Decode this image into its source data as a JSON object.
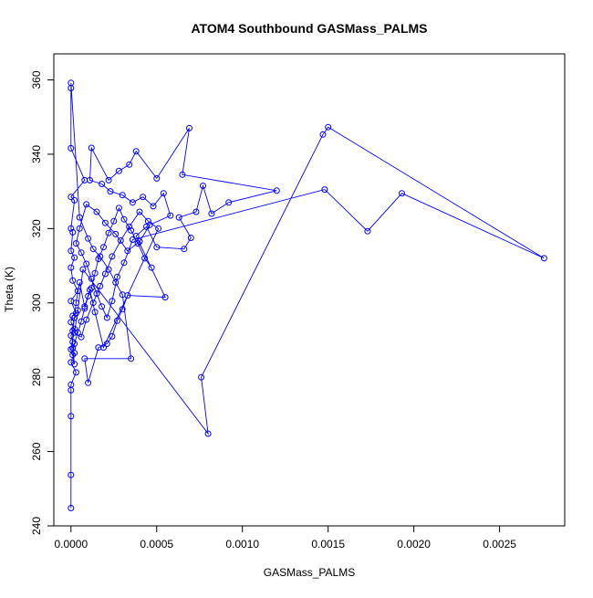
{
  "chart_data": {
    "type": "line",
    "title": "ATOM4 Southbound GASMass_PALMS",
    "xlabel": "GASMass_PALMS",
    "ylabel": "Theta (K)",
    "xlim": [
      -0.0001,
      0.00288
    ],
    "ylim": [
      240,
      367
    ],
    "x_ticks": [
      0,
      0.0005,
      0.001,
      0.0015,
      0.002,
      0.0025
    ],
    "x_tick_labels": [
      "0.0000",
      "0.0005",
      "0.0010",
      "0.0015",
      "0.0020",
      "0.0025"
    ],
    "y_ticks": [
      240,
      260,
      280,
      300,
      320,
      340,
      360
    ],
    "y_tick_labels": [
      "240",
      "260",
      "280",
      "300",
      "320",
      "340",
      "360"
    ],
    "grid": false,
    "series": [
      {
        "color": "#0000ff",
        "marker": "open-circle",
        "points": [
          [
            0.0,
            244.8
          ],
          [
            0.0,
            253.7
          ],
          [
            0.0,
            269.5
          ],
          [
            0.0,
            276.5
          ],
          [
            0.0,
            278.0
          ],
          [
            3e-05,
            281.3
          ],
          [
            0.0,
            284.0
          ],
          [
            2e-05,
            286.5
          ],
          [
            0.0,
            287.5
          ],
          [
            1e-05,
            289.5
          ],
          [
            0.0,
            291.2
          ],
          [
            2e-05,
            293.0
          ],
          [
            0.0,
            294.8
          ],
          [
            1e-05,
            296.5
          ],
          [
            3e-05,
            297.2
          ],
          [
            0.0,
            300.5
          ],
          [
            4e-05,
            303.2
          ],
          [
            1e-05,
            306.0
          ],
          [
            0.0,
            309.5
          ],
          [
            2e-05,
            312.2
          ],
          [
            0.0,
            314.0
          ],
          [
            1e-05,
            319.0
          ],
          [
            0.0,
            320.0
          ],
          [
            2e-05,
            327.6
          ],
          [
            0.0,
            328.5
          ],
          [
            8e-05,
            333.0
          ],
          [
            0.0,
            341.6
          ],
          [
            0.0,
            357.8
          ],
          [
            0.0,
            359.2
          ],
          [
            5e-05,
            323.0
          ],
          [
            0.0001,
            317.3
          ],
          [
            0.00013,
            314.5
          ],
          [
            0.00017,
            312.5
          ],
          [
            0.00022,
            309.0
          ],
          [
            0.00026,
            305.5
          ],
          [
            0.0003,
            302.2
          ],
          [
            0.00035,
            285.0
          ],
          [
            8e-05,
            285.0
          ],
          [
            0.0001,
            278.5
          ],
          [
            0.00016,
            288.0
          ],
          [
            0.00021,
            289.0
          ],
          [
            0.00024,
            291.0
          ],
          [
            0.00027,
            295.2
          ],
          [
            0.0003,
            298.3
          ],
          [
            0.00033,
            302.0
          ],
          [
            0.00055,
            301.5
          ],
          [
            0.00038,
            318.0
          ],
          [
            0.00044,
            320.5
          ],
          [
            0.0005,
            315.0
          ],
          [
            0.00066,
            314.5
          ],
          [
            0.0007,
            317.5
          ],
          [
            0.00063,
            323.0
          ],
          [
            0.00073,
            324.5
          ],
          [
            0.00077,
            331.5
          ],
          [
            0.00082,
            324.0
          ],
          [
            0.00092,
            327.0
          ],
          [
            0.0012,
            330.2
          ],
          [
            0.00065,
            334.5
          ],
          [
            0.00069,
            347.0
          ],
          [
            0.0005,
            333.5
          ],
          [
            0.00038,
            340.8
          ],
          [
            0.00034,
            337.2
          ],
          [
            0.00028,
            335.5
          ],
          [
            0.00022,
            333.0
          ],
          [
            0.00012,
            341.7
          ],
          [
            0.00011,
            333.0
          ],
          [
            0.00018,
            332.0
          ],
          [
            0.00023,
            330.0
          ],
          [
            0.0003,
            329.0
          ],
          [
            0.00036,
            327.0
          ],
          [
            0.00042,
            328.5
          ],
          [
            0.00048,
            326.0
          ],
          [
            0.00054,
            329.5
          ],
          [
            0.00058,
            323.5
          ],
          [
            0.00046,
            321.0
          ],
          [
            0.0004,
            316.5
          ],
          [
            0.00033,
            314.0
          ],
          [
            0.00026,
            318.5
          ],
          [
            0.0002,
            321.5
          ],
          [
            0.00015,
            324.5
          ],
          [
            9e-05,
            326.5
          ],
          [
            5e-05,
            320.0
          ],
          [
            3e-05,
            316.0
          ],
          [
            6e-05,
            313.5
          ],
          [
            9e-05,
            310.5
          ],
          [
            0.00012,
            306.5
          ],
          [
            0.00015,
            302.5
          ],
          [
            0.00018,
            299.0
          ],
          [
            0.00021,
            296.0
          ],
          [
            0.00024,
            300.5
          ],
          [
            0.00027,
            307.0
          ],
          [
            0.00031,
            310.8
          ],
          [
            0.00036,
            317.0
          ],
          [
            0.00148,
            330.5
          ],
          [
            0.00173,
            319.3
          ],
          [
            0.00193,
            329.5
          ],
          [
            0.00276,
            312.0
          ],
          [
            0.0015,
            347.3
          ],
          [
            0.00147,
            345.3
          ],
          [
            0.00076,
            280.0
          ],
          [
            0.0008,
            264.8
          ],
          [
            7e-05,
            309.0
          ],
          [
            4e-05,
            298.0
          ],
          [
            2e-05,
            292.0
          ],
          [
            6e-05,
            290.8
          ],
          [
            9e-05,
            295.5
          ],
          [
            0.00013,
            300.0
          ],
          [
            0.00017,
            304.5
          ],
          [
            0.0002,
            307.8
          ],
          [
            0.00024,
            312.5
          ],
          [
            0.00029,
            316.8
          ],
          [
            0.00034,
            320.5
          ],
          [
            0.0004,
            324.5
          ],
          [
            0.00045,
            322.0
          ],
          [
            0.00051,
            320.0
          ],
          [
            0.00019,
            288.0
          ],
          [
            0.00014,
            297.5
          ],
          [
            0.00011,
            303.5
          ],
          [
            8e-05,
            299.0
          ],
          [
            5e-05,
            305.5
          ],
          [
            3e-05,
            300.0
          ],
          [
            2e-05,
            296.0
          ],
          [
            1e-05,
            292.5
          ],
          [
            1e-05,
            287.8
          ],
          [
            2e-05,
            283.5
          ],
          [
            1e-05,
            286.0
          ],
          [
            2e-05,
            289.0
          ],
          [
            4e-05,
            292.0
          ],
          [
            6e-05,
            295.0
          ],
          [
            8e-05,
            298.5
          ],
          [
            0.0001,
            301.8
          ],
          [
            0.00012,
            304.0
          ],
          [
            0.00014,
            308.0
          ],
          [
            0.00016,
            311.8
          ],
          [
            0.00019,
            315.0
          ],
          [
            0.00022,
            318.8
          ],
          [
            0.00025,
            322.0
          ],
          [
            0.00028,
            325.5
          ],
          [
            0.00031,
            322.5
          ],
          [
            0.00035,
            319.5
          ],
          [
            0.00039,
            316.0
          ],
          [
            0.00043,
            312.0
          ],
          [
            0.00047,
            309.5
          ]
        ]
      }
    ]
  }
}
